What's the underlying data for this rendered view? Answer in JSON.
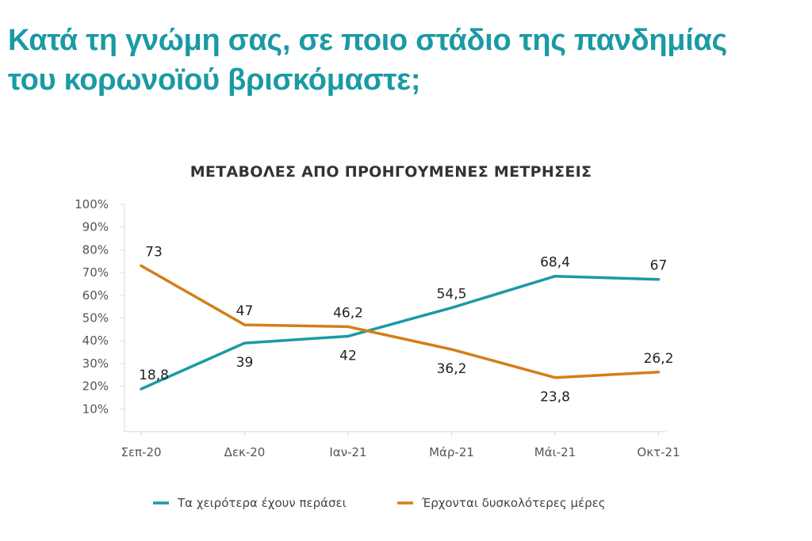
{
  "page": {
    "title_line1": "Κατά τη γνώμη σας, σε ποιο στάδιο της πανδημίας",
    "title_line2": "του κορωνοϊού βρισκόμαστε;"
  },
  "chart_data": {
    "type": "line",
    "title": "ΜΕΤΑΒΟΛΕΣ ΑΠΟ ΠΡΟΗΓΟΥΜΕΝΕΣ ΜΕΤΡΗΣΕΙΣ",
    "categories": [
      "Σεπ-20",
      "Δεκ-20",
      "Ιαν-21",
      "Μάρ-21",
      "Μάι-21",
      "Οκτ-21"
    ],
    "y_ticks": [
      10,
      20,
      30,
      40,
      50,
      60,
      70,
      80,
      90,
      100
    ],
    "y_tick_labels": [
      "10%",
      "20%",
      "30%",
      "40%",
      "50%",
      "60%",
      "70%",
      "80%",
      "90%",
      "100%"
    ],
    "ylim": [
      0,
      100
    ],
    "xlabel": "",
    "ylabel": "",
    "legend_position": "bottom",
    "series": [
      {
        "name": "Τα χειρότερα έχουν περάσει",
        "color": "#1a9aa4",
        "values": [
          18.8,
          39,
          42,
          54.5,
          68.4,
          67
        ],
        "labels": [
          "18,8",
          "39",
          "42",
          "54,5",
          "68,4",
          "67"
        ],
        "label_side": [
          "above",
          "below",
          "below",
          "above",
          "above",
          "above"
        ]
      },
      {
        "name": "Έρχονται δυσκολότερες μέρες",
        "color": "#d47e16",
        "values": [
          73,
          47,
          46.2,
          36.2,
          23.8,
          26.2
        ],
        "labels": [
          "73",
          "47",
          "46,2",
          "36,2",
          "23,8",
          "26,2"
        ],
        "label_side": [
          "above",
          "above",
          "above",
          "below",
          "below",
          "above"
        ]
      }
    ]
  }
}
